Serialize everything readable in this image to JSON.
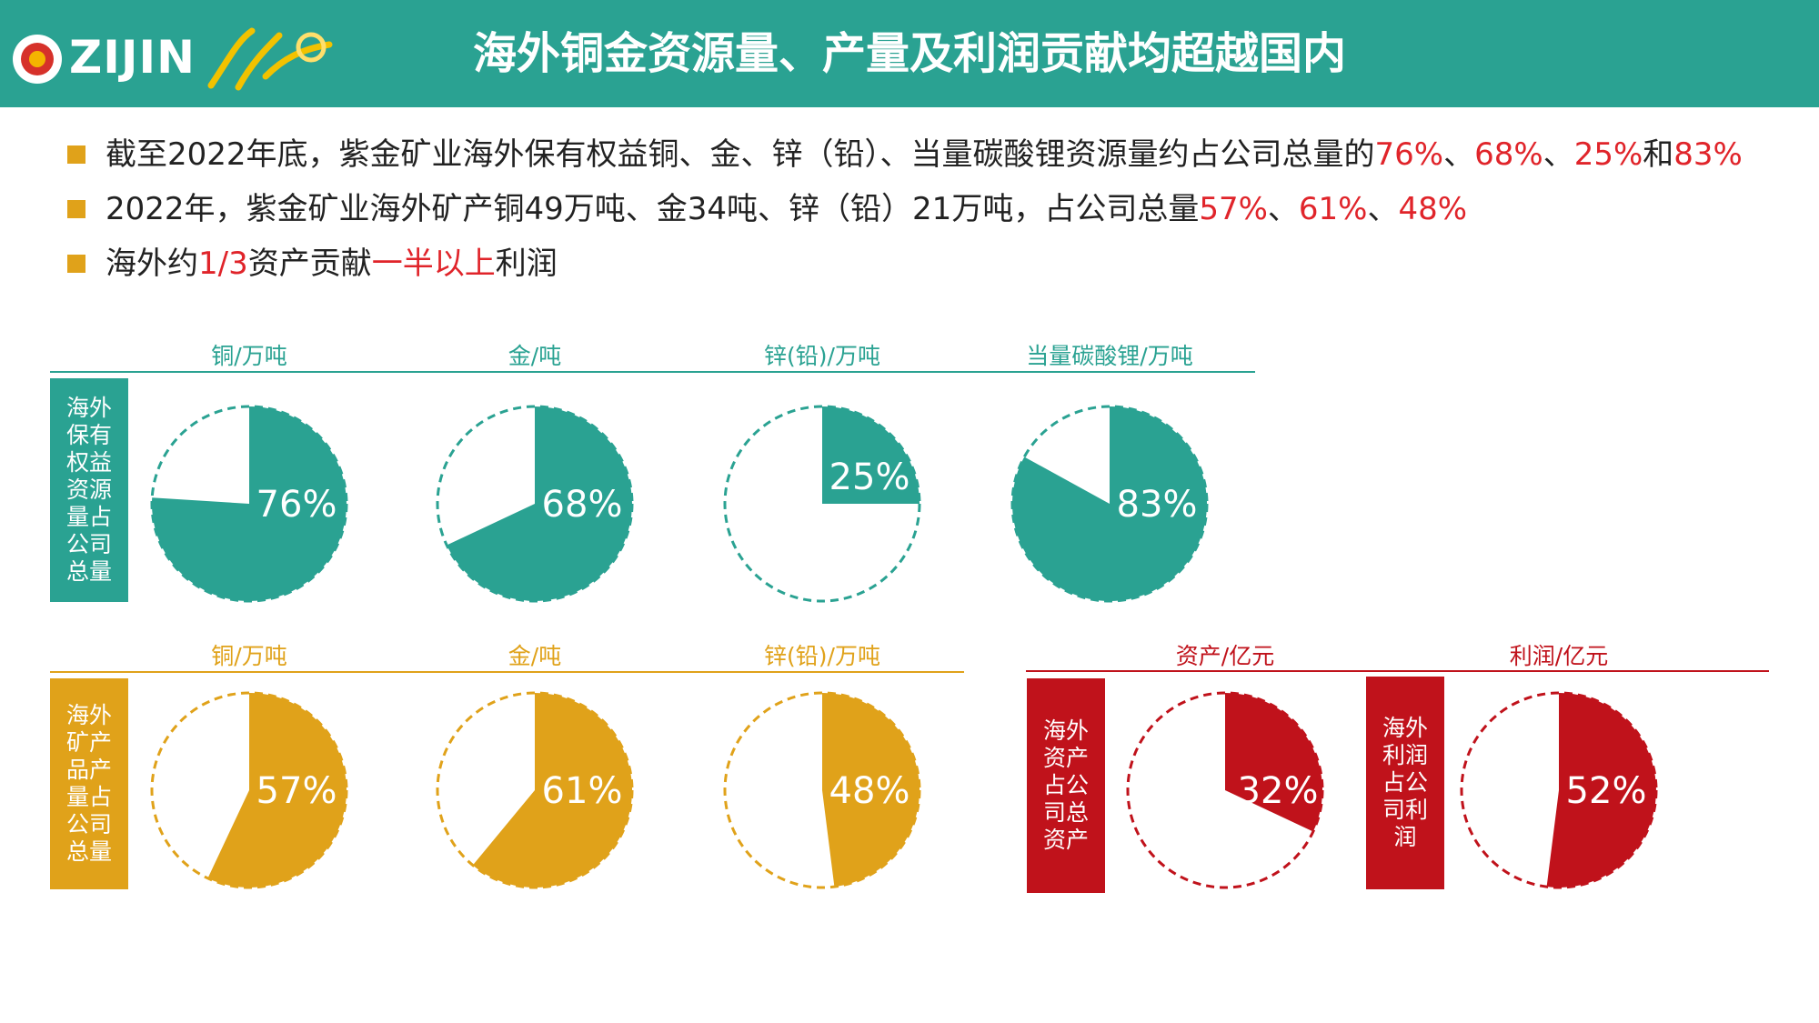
{
  "header": {
    "logo_text": "ZIJIN",
    "title": "海外铜金资源量、产量及利润贡献均超越国内"
  },
  "bullets": [
    {
      "parts": [
        {
          "text": "截至2022年底，紫金矿业海外保有权益铜、金、锌（铅）、当量碳酸锂资源量约占公司总量的",
          "hl": false
        },
        {
          "text": "76%",
          "hl": true
        },
        {
          "text": "、",
          "hl": false
        },
        {
          "text": "68%",
          "hl": true
        },
        {
          "text": "、",
          "hl": false
        },
        {
          "text": "25%",
          "hl": true
        },
        {
          "text": "和",
          "hl": false
        },
        {
          "text": "83%",
          "hl": true
        }
      ]
    },
    {
      "parts": [
        {
          "text": "2022年，紫金矿业海外矿产铜49万吨、金34吨、锌（铅）21万吨，占公司总量",
          "hl": false
        },
        {
          "text": "57%",
          "hl": true
        },
        {
          "text": "、",
          "hl": false
        },
        {
          "text": "61%",
          "hl": true
        },
        {
          "text": "、",
          "hl": false
        },
        {
          "text": "48%",
          "hl": true
        }
      ]
    },
    {
      "parts": [
        {
          "text": "海外约",
          "hl": false
        },
        {
          "text": "1/3",
          "hl": true
        },
        {
          "text": "资产贡献",
          "hl": false
        },
        {
          "text": "一半以上",
          "hl": true
        },
        {
          "text": "利润",
          "hl": false
        }
      ]
    }
  ],
  "colors": {
    "teal": "#2aa292",
    "gold": "#e0a21a",
    "red": "#c0121b"
  },
  "sections": {
    "resources": {
      "label": "海外保有权益资源量占公司总量"
    },
    "production": {
      "label": "海外矿产品产量占公司总量"
    },
    "assets": {
      "label": "海外资产占公司总资产"
    },
    "profit": {
      "label": "海外利润占公司利润"
    }
  },
  "chart_data": [
    {
      "type": "pie",
      "group": "resources",
      "categories": [
        "铜/万吨",
        "金/吨",
        "锌(铅)/万吨",
        "当量碳酸锂/万吨"
      ],
      "values": [
        76,
        68,
        25,
        83
      ],
      "labels": [
        "76%",
        "68%",
        "25%",
        "83%"
      ],
      "color": "#2aa292"
    },
    {
      "type": "pie",
      "group": "production",
      "categories": [
        "铜/万吨",
        "金/吨",
        "锌(铅)/万吨"
      ],
      "values": [
        57,
        61,
        48
      ],
      "labels": [
        "57%",
        "61%",
        "48%"
      ],
      "color": "#e0a21a"
    },
    {
      "type": "pie",
      "group": "finance",
      "categories": [
        "资产/亿元",
        "利润/亿元"
      ],
      "values": [
        32,
        52
      ],
      "labels": [
        "32%",
        "52%"
      ],
      "color": "#c0121b"
    }
  ]
}
